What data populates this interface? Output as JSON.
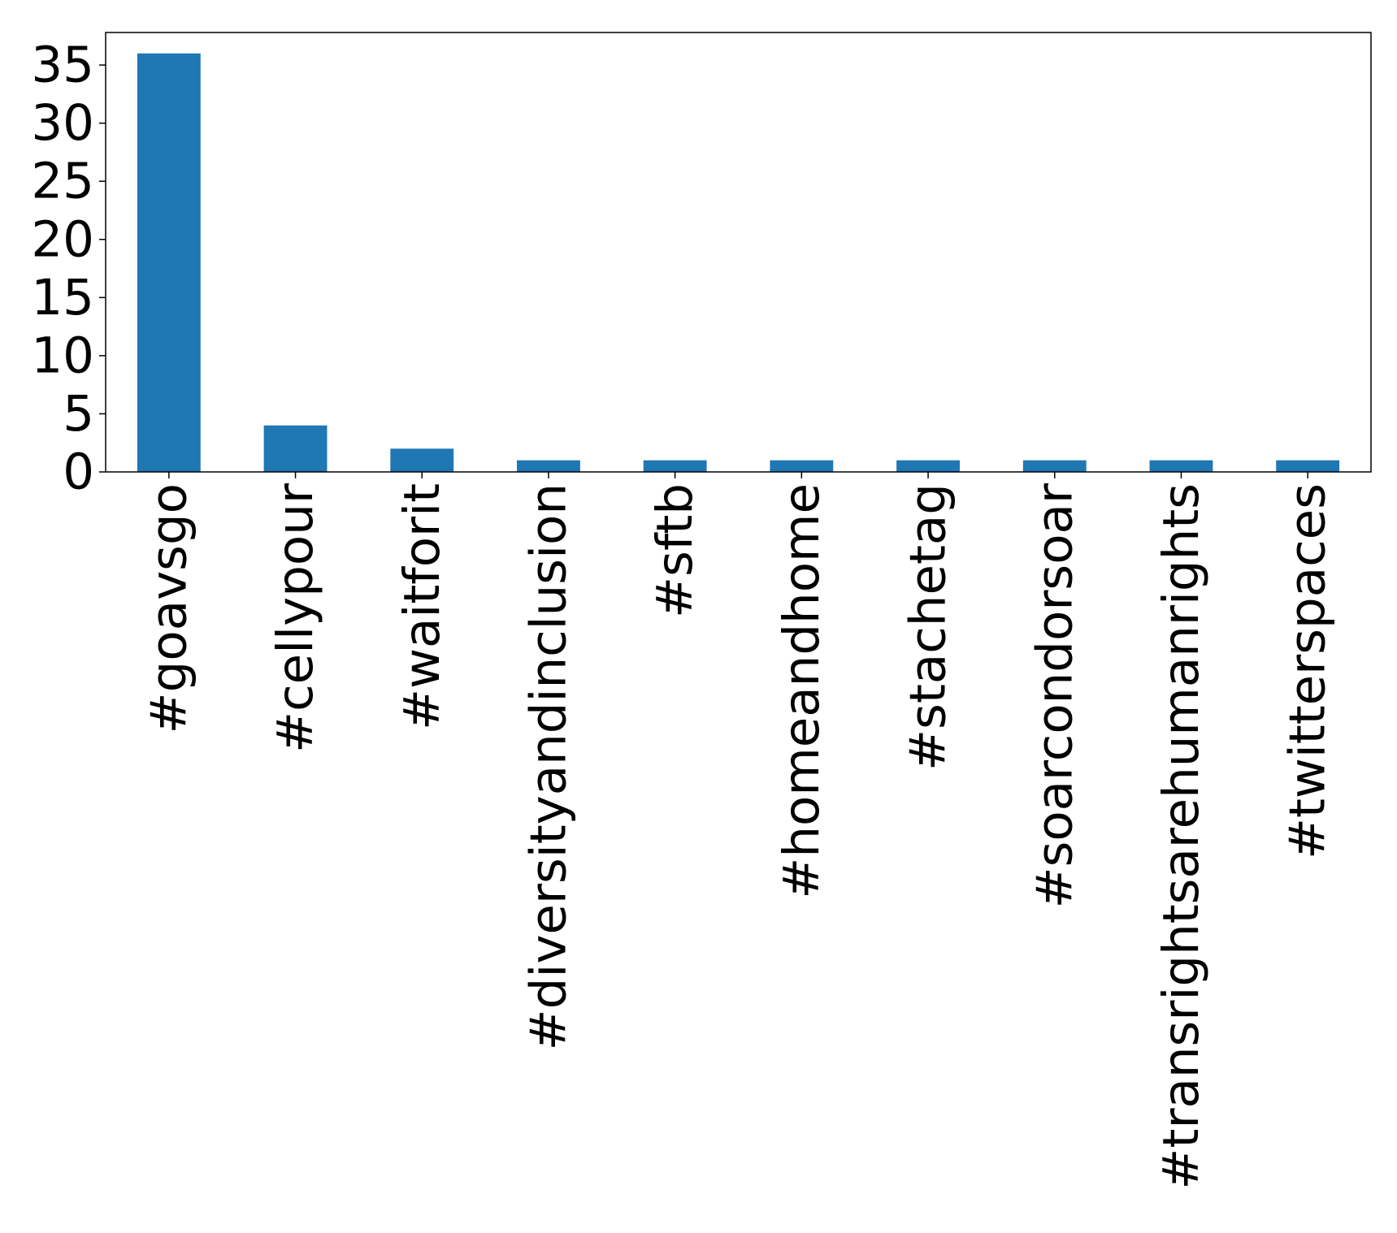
{
  "chart_data": {
    "type": "bar",
    "categories": [
      "#goavsgo",
      "#cellypour",
      "#waitforit",
      "#diversityandinclusion",
      "#sftb",
      "#homeandhome",
      "#stachetag",
      "#soarcondorsoar",
      "#transrightsarehumanrights",
      "#twitterspaces"
    ],
    "values": [
      36,
      4,
      2,
      1,
      1,
      1,
      1,
      1,
      1,
      1
    ],
    "title": "",
    "xlabel": "",
    "ylabel": "",
    "ylim": [
      0,
      37.8
    ],
    "yticks": [
      "0",
      "5",
      "10",
      "15",
      "20",
      "25",
      "30",
      "35"
    ],
    "bar_color": "#1f77b4",
    "grid": false,
    "legend": false
  }
}
